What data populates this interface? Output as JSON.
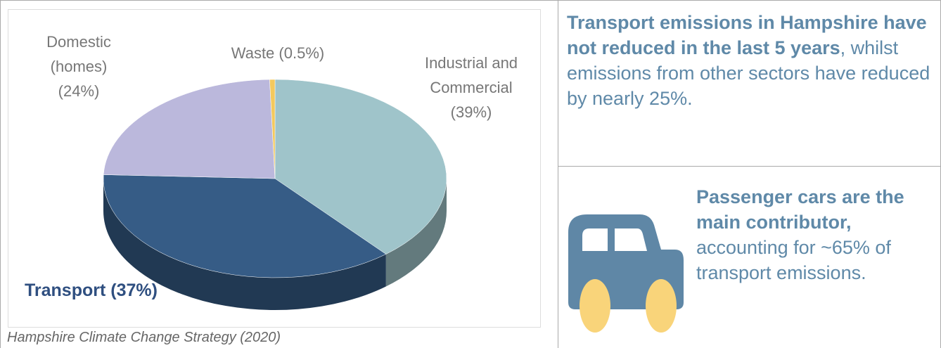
{
  "chart_data": {
    "type": "pie",
    "categories": [
      "Industrial and Commercial",
      "Transport",
      "Domestic (homes)",
      "Waste"
    ],
    "values": [
      39,
      37,
      24,
      0.5
    ],
    "value_labels": [
      "(39%)",
      "(37%)",
      "(24%)",
      "(0.5%)"
    ],
    "colors": [
      "#9fc4ca",
      "#365c86",
      "#bbb8dc",
      "#f4c95d"
    ]
  },
  "source": "Hampshire Climate Change Strategy (2020)",
  "panels": [
    {
      "bold": "Transport emissions in Hampshire have not reduced in the last 5 years",
      "text": ", whilst emissions from other sectors have reduced by nearly 25%."
    },
    {
      "bold": "Passenger cars are the main contributor,",
      "text": "accounting for ~65% of transport emissions."
    }
  ]
}
